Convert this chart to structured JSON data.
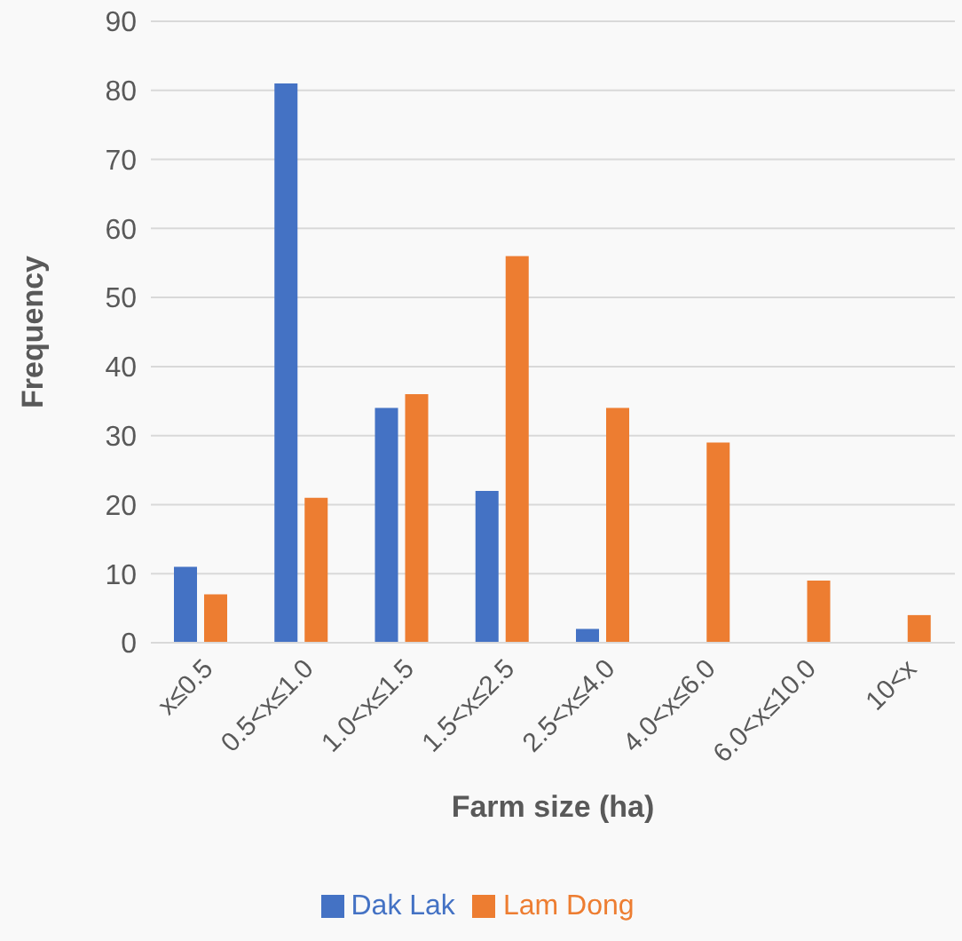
{
  "chart_data": {
    "type": "bar",
    "xlabel": "Farm size (ha)",
    "ylabel": "Frequency",
    "categories": [
      "x≤0.5",
      "0.5<x≤1.0",
      "1.0<x≤1.5",
      "1.5<x≤2.5",
      "2.5<x≤4.0",
      "4.0<x≤6.0",
      "6.0<x≤10.0",
      "10<x"
    ],
    "series": [
      {
        "name": "Dak Lak",
        "color": "#4472c4",
        "values": [
          11,
          81,
          34,
          22,
          2,
          0,
          0,
          0
        ]
      },
      {
        "name": "Lam Dong",
        "color": "#ed7d31",
        "values": [
          7,
          21,
          36,
          56,
          34,
          29,
          9,
          4
        ]
      }
    ],
    "ylim": [
      0,
      90
    ],
    "yticks": [
      0,
      10,
      20,
      30,
      40,
      50,
      60,
      70,
      80,
      90
    ],
    "grid": "y",
    "legend": "bottom"
  }
}
